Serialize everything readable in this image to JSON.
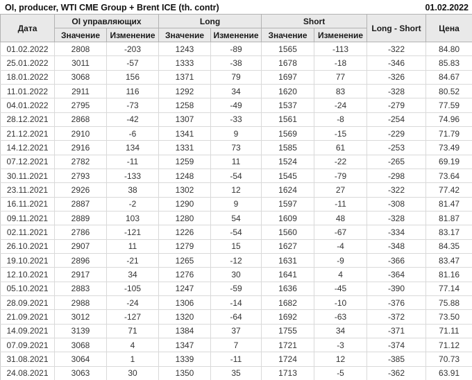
{
  "chart_data": {
    "type": "table",
    "title": "OI, producer, WTI CME Group + Brent ICE (th. contr)",
    "report_date": "01.02.2022",
    "header": {
      "date": "Дата",
      "group_oi": "OI управляющих",
      "group_long": "Long",
      "group_short": "Short",
      "value": "Значение",
      "change": "Изменение",
      "long_short": "Long - Short",
      "price": "Цена"
    },
    "columns": [
      "Дата",
      "OI управляющих Значение",
      "OI управляющих Изменение",
      "Long Значение",
      "Long Изменение",
      "Short Значение",
      "Short Изменение",
      "Long - Short",
      "Цена"
    ],
    "rows": [
      [
        "01.02.2022",
        2808,
        -203,
        1243,
        -89,
        1565,
        -113,
        -322,
        "84.80"
      ],
      [
        "25.01.2022",
        3011,
        -57,
        1333,
        -38,
        1678,
        -18,
        -346,
        "85.83"
      ],
      [
        "18.01.2022",
        3068,
        156,
        1371,
        79,
        1697,
        77,
        -326,
        "84.67"
      ],
      [
        "11.01.2022",
        2911,
        116,
        1292,
        34,
        1620,
        83,
        -328,
        "80.52"
      ],
      [
        "04.01.2022",
        2795,
        -73,
        1258,
        -49,
        1537,
        -24,
        -279,
        "77.59"
      ],
      [
        "28.12.2021",
        2868,
        -42,
        1307,
        -33,
        1561,
        -8,
        -254,
        "74.96"
      ],
      [
        "21.12.2021",
        2910,
        -6,
        1341,
        9,
        1569,
        -15,
        -229,
        "71.79"
      ],
      [
        "14.12.2021",
        2916,
        134,
        1331,
        73,
        1585,
        61,
        -253,
        "73.49"
      ],
      [
        "07.12.2021",
        2782,
        -11,
        1259,
        11,
        1524,
        -22,
        -265,
        "69.19"
      ],
      [
        "30.11.2021",
        2793,
        -133,
        1248,
        -54,
        1545,
        -79,
        -298,
        "73.64"
      ],
      [
        "23.11.2021",
        2926,
        38,
        1302,
        12,
        1624,
        27,
        -322,
        "77.42"
      ],
      [
        "16.11.2021",
        2887,
        -2,
        1290,
        9,
        1597,
        -11,
        -308,
        "81.47"
      ],
      [
        "09.11.2021",
        2889,
        103,
        1280,
        54,
        1609,
        48,
        -328,
        "81.87"
      ],
      [
        "02.11.2021",
        2786,
        -121,
        1226,
        -54,
        1560,
        -67,
        -334,
        "83.17"
      ],
      [
        "26.10.2021",
        2907,
        11,
        1279,
        15,
        1627,
        -4,
        -348,
        "84.35"
      ],
      [
        "19.10.2021",
        2896,
        -21,
        1265,
        -12,
        1631,
        -9,
        -366,
        "83.47"
      ],
      [
        "12.10.2021",
        2917,
        34,
        1276,
        30,
        1641,
        4,
        -364,
        "81.16"
      ],
      [
        "05.10.2021",
        2883,
        -105,
        1247,
        -59,
        1636,
        -45,
        -390,
        "77.14"
      ],
      [
        "28.09.2021",
        2988,
        -24,
        1306,
        -14,
        1682,
        -10,
        -376,
        "75.88"
      ],
      [
        "21.09.2021",
        3012,
        -127,
        1320,
        -64,
        1692,
        -63,
        -372,
        "73.50"
      ],
      [
        "14.09.2021",
        3139,
        71,
        1384,
        37,
        1755,
        34,
        -371,
        "71.11"
      ],
      [
        "07.09.2021",
        3068,
        4,
        1347,
        7,
        1721,
        -3,
        -374,
        "71.12"
      ],
      [
        "31.08.2021",
        3064,
        1,
        1339,
        -11,
        1724,
        12,
        -385,
        "70.73"
      ],
      [
        "24.08.2021",
        3063,
        30,
        1350,
        35,
        1713,
        -5,
        -362,
        "63.91"
      ]
    ],
    "colors": {
      "negative": "#d40000",
      "positive": "#149614",
      "header_bg": "#e9e9e9"
    }
  }
}
